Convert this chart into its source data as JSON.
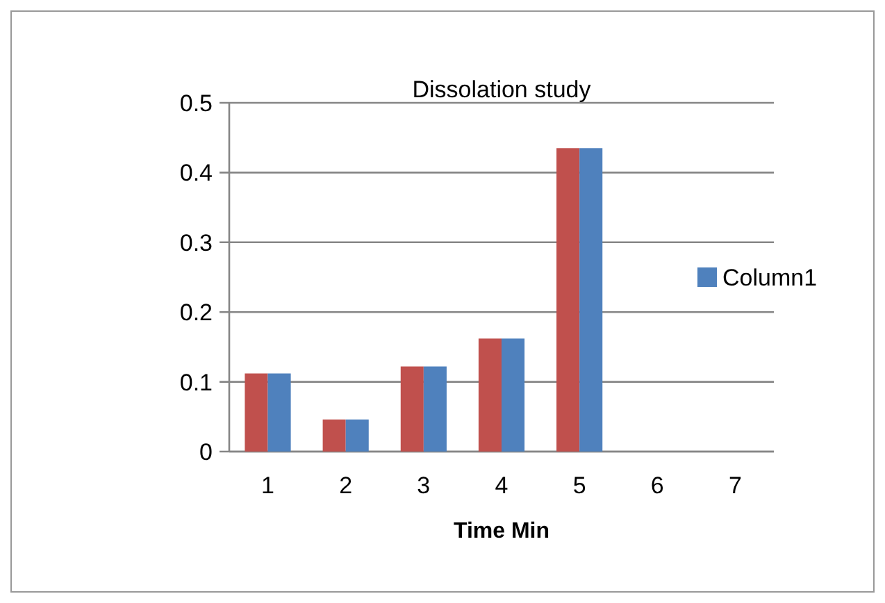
{
  "chart_data": {
    "type": "bar",
    "title": "Dissolation study",
    "xlabel": "Time Min",
    "categories": [
      "1",
      "2",
      "3",
      "4",
      "5",
      "6",
      "7"
    ],
    "series": [
      {
        "color": "#c0504d",
        "values": [
          0.112,
          0.046,
          0.122,
          0.162,
          0.435,
          null,
          null
        ]
      },
      {
        "name": "Column1",
        "color": "#4f81bd",
        "values": [
          0.112,
          0.046,
          0.122,
          0.162,
          0.435,
          null,
          null
        ]
      }
    ],
    "ylim": [
      0,
      0.5
    ],
    "yticks": [
      0,
      0.1,
      0.2,
      0.3,
      0.4,
      0.5
    ],
    "grid": "y",
    "legend": "right"
  }
}
